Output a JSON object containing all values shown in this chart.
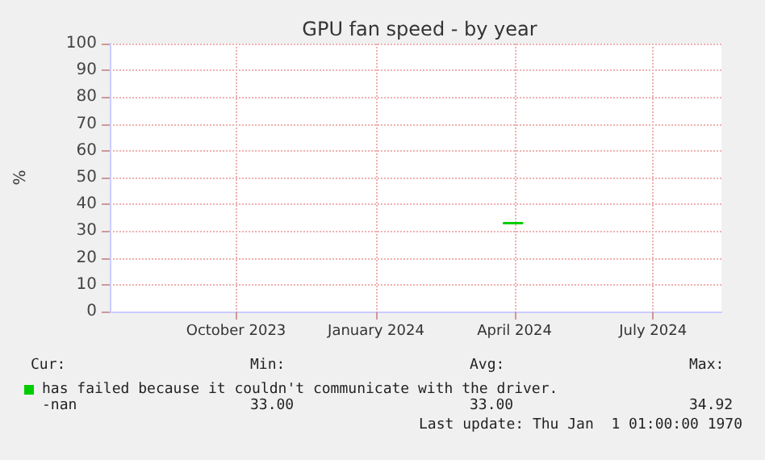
{
  "chart_data": {
    "type": "line",
    "title": "GPU fan speed - by year",
    "ylabel": "%",
    "x": [
      "2024-03-25",
      "2024-04-06"
    ],
    "series": [
      {
        "name": "has failed because it couldn't communicate with the driver.",
        "color": "#00cc00",
        "values": [
          33,
          33
        ]
      }
    ],
    "xlim": [
      "2023-07-10",
      "2024-08-15"
    ],
    "xticks": [
      {
        "value": "2023-10-01",
        "label": "October 2023"
      },
      {
        "value": "2024-01-01",
        "label": "January 2024"
      },
      {
        "value": "2024-04-01",
        "label": "April 2024"
      },
      {
        "value": "2024-07-01",
        "label": "July 2024"
      }
    ],
    "ylim": [
      0,
      100
    ],
    "yticks": [
      0,
      10,
      20,
      30,
      40,
      50,
      60,
      70,
      80,
      90,
      100
    ],
    "grid": true,
    "legend": "bottom left",
    "marker": "none",
    "line_style": "solid",
    "annotations": [
      "Cur:",
      "Min:",
      "Avg:",
      "Max:",
      "-nan",
      "33.00",
      "33.00",
      "34.92",
      "Last update: Thu Jan  1 01:00:00 1970"
    ]
  }
}
